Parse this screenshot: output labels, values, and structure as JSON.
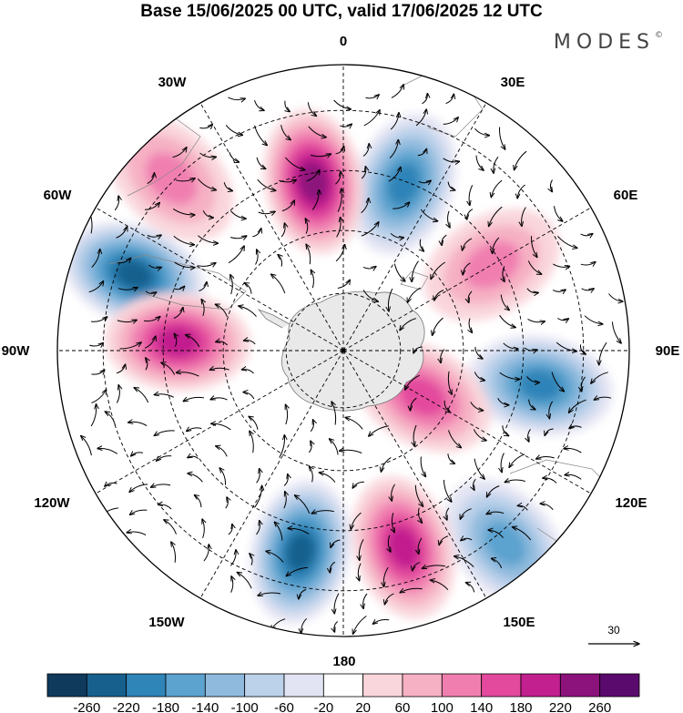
{
  "title": "Base 15/06/2025 00 UTC, valid 17/06/2025 12 UTC",
  "brand": "MODES",
  "brand_mark": "©",
  "lon_labels": [
    {
      "id": "0",
      "text": "0"
    },
    {
      "id": "30e",
      "text": "30E"
    },
    {
      "id": "60e",
      "text": "60E"
    },
    {
      "id": "90e",
      "text": "90E"
    },
    {
      "id": "120e",
      "text": "120E"
    },
    {
      "id": "150e",
      "text": "150E"
    },
    {
      "id": "180",
      "text": "180"
    },
    {
      "id": "150w",
      "text": "150W"
    },
    {
      "id": "120w",
      "text": "120W"
    },
    {
      "id": "90w",
      "text": "90W"
    },
    {
      "id": "60w",
      "text": "60W"
    },
    {
      "id": "30w",
      "text": "30W"
    }
  ],
  "reference_vector": "30",
  "colorbar": {
    "ticks": [
      "-260",
      "-220",
      "-180",
      "-140",
      "-100",
      "-60",
      "-20",
      "20",
      "60",
      "100",
      "140",
      "180",
      "220",
      "260"
    ],
    "colors": [
      "#0f3a5c",
      "#17608e",
      "#2f84b8",
      "#5ca3cf",
      "#8fbadd",
      "#bcd1ea",
      "#e3e4f3",
      "#ffffff",
      "#f9d6db",
      "#f6b1c4",
      "#f07fb0",
      "#e3499d",
      "#c21f8f",
      "#8c137c",
      "#5a0a6c"
    ]
  },
  "anomaly_centers": [
    {
      "kind": "neg",
      "lon": -70,
      "r": 0.78,
      "value": -240
    },
    {
      "kind": "neg",
      "lon": 20,
      "r": 0.62,
      "value": -180
    },
    {
      "kind": "neg",
      "lon": 100,
      "r": 0.7,
      "value": -200
    },
    {
      "kind": "neg",
      "lon": -168,
      "r": 0.72,
      "value": -220
    },
    {
      "kind": "neg",
      "lon": 140,
      "r": 0.88,
      "value": -140
    },
    {
      "kind": "pos",
      "lon": -10,
      "r": 0.6,
      "value": 220
    },
    {
      "kind": "pos",
      "lon": -87,
      "r": 0.58,
      "value": 200
    },
    {
      "kind": "pos",
      "lon": 163,
      "r": 0.72,
      "value": 200
    },
    {
      "kind": "pos",
      "lon": -45,
      "r": 0.85,
      "value": 120
    },
    {
      "kind": "pos",
      "lon": 60,
      "r": 0.6,
      "value": 120
    },
    {
      "kind": "pos",
      "lon": 120,
      "r": 0.32,
      "value": 140
    }
  ]
}
